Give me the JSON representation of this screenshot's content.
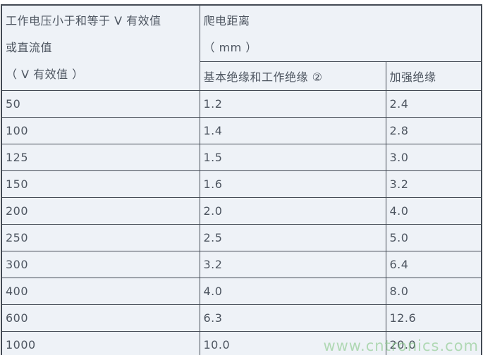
{
  "table": {
    "colors": {
      "cell_background": "#eef2f7",
      "border": "#434a54",
      "text": "#4d5560"
    },
    "header": {
      "voltage_line1": "工作电压小于和等于 V 有效值",
      "voltage_line2": "或直流值",
      "voltage_line3": "（ V 有效值 ）",
      "creepage_title": "爬电距离",
      "creepage_unit": "（ mm ）",
      "col_basic": "基本绝缘和工作绝缘 ②",
      "col_reinforced": "加强绝缘"
    },
    "rows": [
      {
        "voltage": "50",
        "basic": "1.2",
        "reinforced": "2.4"
      },
      {
        "voltage": "100",
        "basic": "1.4",
        "reinforced": "2.8"
      },
      {
        "voltage": "125",
        "basic": "1.5",
        "reinforced": "3.0"
      },
      {
        "voltage": "150",
        "basic": "1.6",
        "reinforced": "3.2"
      },
      {
        "voltage": "200",
        "basic": "2.0",
        "reinforced": "4.0"
      },
      {
        "voltage": "250",
        "basic": "2.5",
        "reinforced": "5.0"
      },
      {
        "voltage": "300",
        "basic": "3.2",
        "reinforced": "6.4"
      },
      {
        "voltage": "400",
        "basic": "4.0",
        "reinforced": "8.0"
      },
      {
        "voltage": "600",
        "basic": "6.3",
        "reinforced": "12.6"
      },
      {
        "voltage": "1000",
        "basic": "10.0",
        "reinforced": "20.0"
      }
    ]
  },
  "watermark": {
    "text": "www.cntronics.com",
    "color": "#7ec47e"
  },
  "chart_data": {
    "type": "table",
    "title": "爬电距离",
    "columns": [
      "工作电压小于和等于 V 有效值或直流值（ V 有效值 ）",
      "爬电距离（ mm ）：基本绝缘和工作绝缘 ②",
      "爬电距离（ mm ）：加强绝缘"
    ],
    "rows": [
      [
        50,
        1.2,
        2.4
      ],
      [
        100,
        1.4,
        2.8
      ],
      [
        125,
        1.5,
        3.0
      ],
      [
        150,
        1.6,
        3.2
      ],
      [
        200,
        2.0,
        4.0
      ],
      [
        250,
        2.5,
        5.0
      ],
      [
        300,
        3.2,
        6.4
      ],
      [
        400,
        4.0,
        8.0
      ],
      [
        600,
        6.3,
        12.6
      ],
      [
        1000,
        10.0,
        20.0
      ]
    ]
  }
}
